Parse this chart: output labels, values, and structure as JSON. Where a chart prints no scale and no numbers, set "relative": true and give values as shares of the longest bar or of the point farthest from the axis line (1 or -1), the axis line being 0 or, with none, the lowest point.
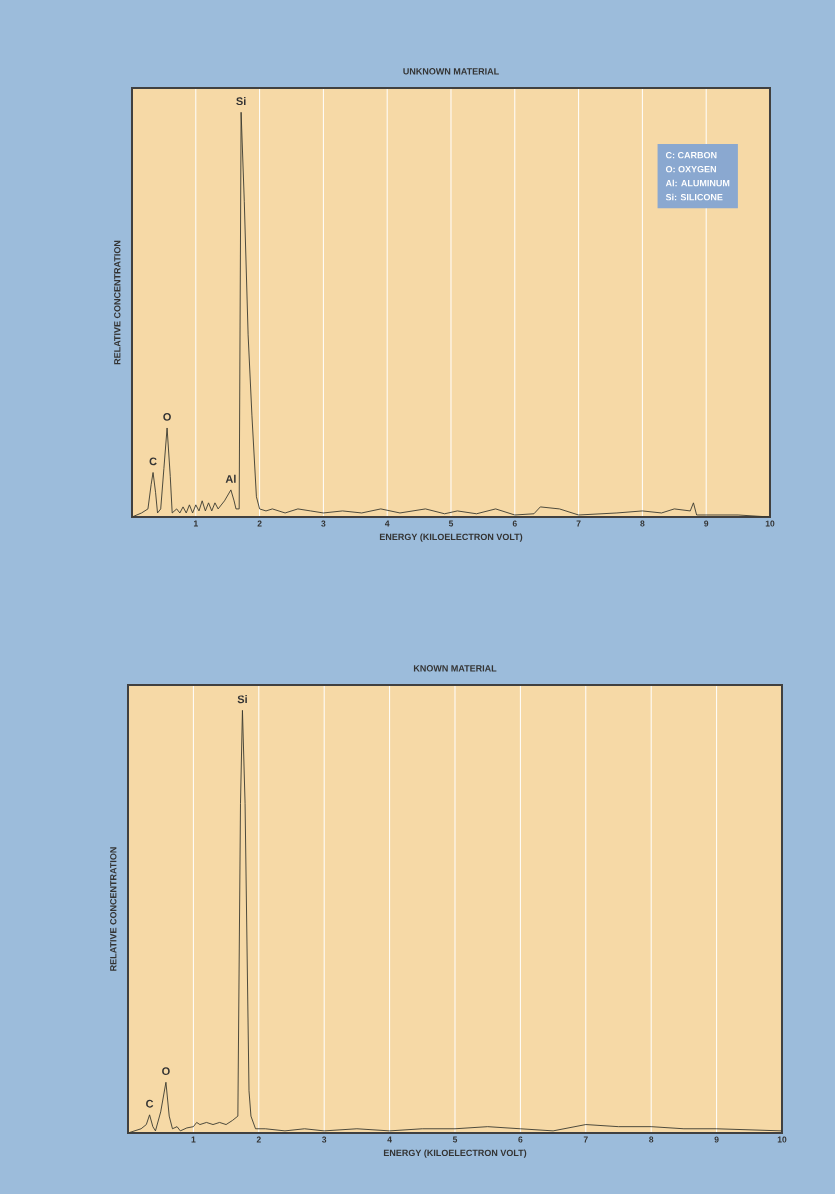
{
  "chart_data": [
    {
      "type": "line",
      "title": "UNKNOWN MATERIAL",
      "xlabel": "ENERGY (KILOELECTRON VOLT)",
      "ylabel": "RELATIVE CONCENTRATION",
      "relative": true,
      "grid": "x",
      "xlim": [
        0,
        10
      ],
      "xticks": [
        1,
        2,
        3,
        4,
        5,
        6,
        7,
        8,
        9,
        10
      ],
      "line_style": "solid",
      "marker": "none",
      "series": [
        {
          "color": "#3a3a30",
          "x": [
            0,
            0.15,
            0.25,
            0.3,
            0.33,
            0.37,
            0.4,
            0.45,
            0.5,
            0.55,
            0.6,
            0.63,
            0.7,
            0.75,
            0.8,
            0.85,
            0.9,
            0.95,
            1.0,
            1.05,
            1.1,
            1.15,
            1.2,
            1.25,
            1.3,
            1.35,
            1.4,
            1.45,
            1.55,
            1.6,
            1.63,
            1.68,
            1.71,
            1.76,
            1.82,
            1.88,
            1.95,
            2.0,
            2.1,
            2.2,
            2.4,
            2.6,
            2.8,
            3.0,
            3.3,
            3.6,
            3.9,
            4.2,
            4.6,
            4.9,
            5.1,
            5.4,
            5.7,
            6.0,
            6.3,
            6.4,
            6.7,
            7.0,
            7.6,
            8.0,
            8.3,
            8.5,
            8.75,
            8.8,
            8.85,
            9.5,
            10
          ],
          "values": [
            0,
            0.01,
            0.02,
            0.08,
            0.11,
            0.06,
            0.01,
            0.02,
            0.12,
            0.22,
            0.1,
            0.01,
            0.02,
            0.01,
            0.025,
            0.01,
            0.03,
            0.01,
            0.03,
            0.015,
            0.04,
            0.015,
            0.035,
            0.015,
            0.035,
            0.02,
            0.03,
            0.04,
            0.067,
            0.04,
            0.02,
            0.02,
            1.0,
            0.78,
            0.45,
            0.25,
            0.05,
            0.02,
            0.015,
            0.02,
            0.01,
            0.02,
            0.015,
            0.01,
            0.015,
            0.01,
            0.02,
            0.01,
            0.02,
            0.008,
            0.015,
            0.008,
            0.02,
            0.005,
            0.008,
            0.025,
            0.02,
            0.005,
            0.01,
            0.015,
            0.01,
            0.02,
            0.015,
            0.035,
            0.005,
            0.005,
            0
          ]
        }
      ],
      "annotations": [
        {
          "text": "C",
          "x": 0.33,
          "y": 0.11
        },
        {
          "text": "O",
          "x": 0.55,
          "y": 0.22
        },
        {
          "text": "Al",
          "x": 1.55,
          "y": 0.067
        },
        {
          "text": "Si",
          "x": 1.71,
          "y": 1.0
        },
        "C: CARBON",
        "O: OXYGEN",
        "Al: ALUMINUM",
        "Si: SILICONE"
      ]
    },
    {
      "type": "line",
      "title": "KNOWN MATERIAL",
      "xlabel": "ENERGY (KILOELECTRON VOLT)",
      "ylabel": "RELATIVE CONCENTRATION",
      "relative": true,
      "grid": "x",
      "xlim": [
        0,
        10
      ],
      "xticks": [
        1,
        2,
        3,
        4,
        5,
        6,
        7,
        8,
        9,
        10
      ],
      "line_style": "solid",
      "marker": "none",
      "series": [
        {
          "color": "#3a3a30",
          "x": [
            0,
            0.2,
            0.28,
            0.33,
            0.38,
            0.42,
            0.5,
            0.58,
            0.63,
            0.68,
            0.75,
            0.8,
            0.9,
            1.0,
            1.05,
            1.1,
            1.2,
            1.3,
            1.4,
            1.5,
            1.6,
            1.68,
            1.72,
            1.75,
            1.79,
            1.85,
            1.88,
            1.95,
            2.1,
            2.4,
            2.7,
            3.0,
            3.5,
            4.0,
            4.5,
            5.0,
            5.5,
            6.0,
            6.5,
            7.0,
            7.5,
            8.0,
            8.5,
            9.0,
            10
          ],
          "values": [
            0,
            0.01,
            0.02,
            0.043,
            0.015,
            0.005,
            0.05,
            0.12,
            0.04,
            0.01,
            0.015,
            0.005,
            0.012,
            0.015,
            0.025,
            0.02,
            0.025,
            0.02,
            0.025,
            0.02,
            0.03,
            0.04,
            0.78,
            1.0,
            0.78,
            0.1,
            0.04,
            0.01,
            0.01,
            0.005,
            0.01,
            0.005,
            0.01,
            0.005,
            0.01,
            0.01,
            0.015,
            0.01,
            0.005,
            0.02,
            0.015,
            0.015,
            0.01,
            0.01,
            0.005
          ]
        }
      ],
      "annotations": [
        {
          "text": "C",
          "x": 0.33,
          "y": 0.043
        },
        {
          "text": "O",
          "x": 0.58,
          "y": 0.12
        },
        {
          "text": "Si",
          "x": 1.75,
          "y": 1.0
        }
      ]
    }
  ]
}
